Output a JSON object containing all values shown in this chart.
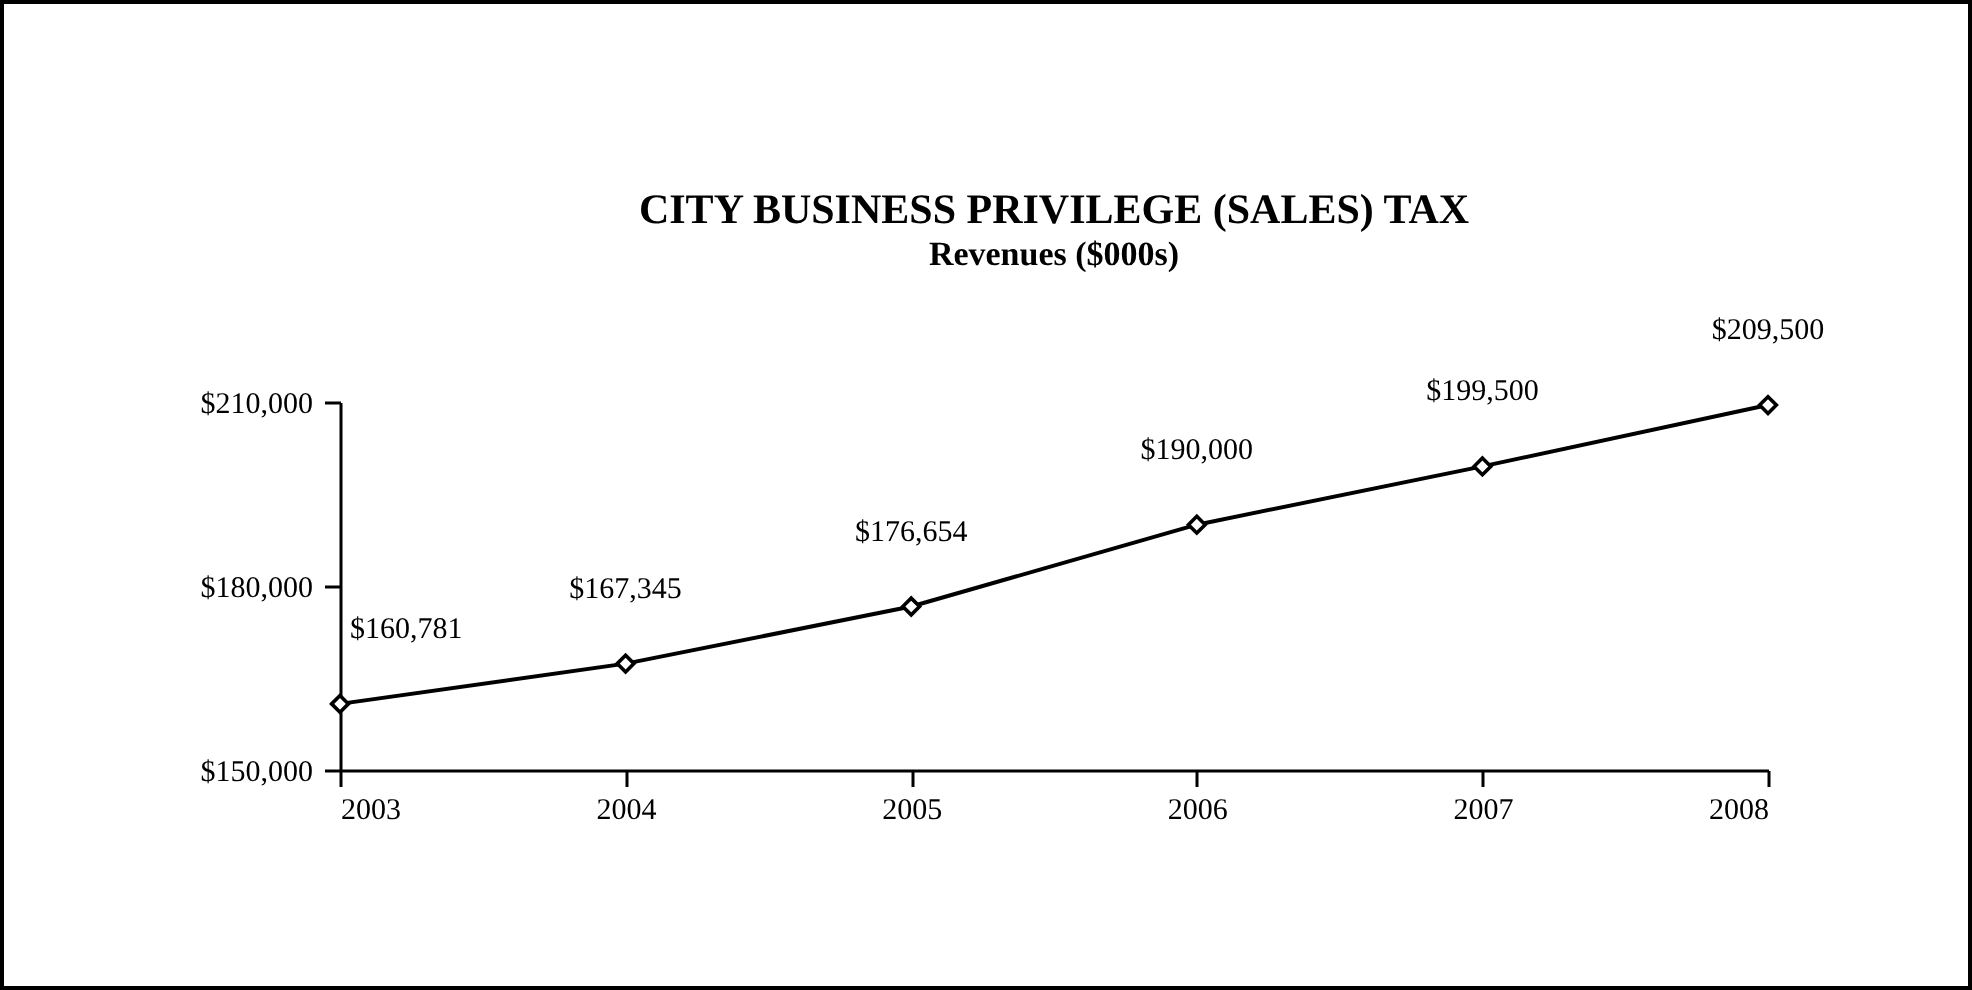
{
  "chart_data": {
    "type": "line",
    "title": "CITY BUSINESS PRIVILEGE (SALES) TAX",
    "subtitle": "Revenues ($000s)",
    "x": [
      2003,
      2004,
      2005,
      2006,
      2007,
      2008
    ],
    "series": [
      {
        "color": "#000000",
        "values": [
          160781,
          167345,
          176654,
          190000,
          199500,
          209500
        ],
        "value_labels": [
          "$160,781",
          "$167,345",
          "$176,654",
          "$190,000",
          "$199,500",
          "$209,500"
        ]
      }
    ],
    "xlim": [
      2003,
      2008
    ],
    "xticks": [
      2003,
      2004,
      2005,
      2006,
      2007,
      2008
    ],
    "ylim": [
      150000,
      210000
    ],
    "yticks": [
      {
        "value": 150000,
        "label": "$150,000"
      },
      {
        "value": 180000,
        "label": "$180,000"
      },
      {
        "value": 210000,
        "label": "$210,000"
      }
    ],
    "marker": "diamond",
    "line_style": "solid"
  }
}
